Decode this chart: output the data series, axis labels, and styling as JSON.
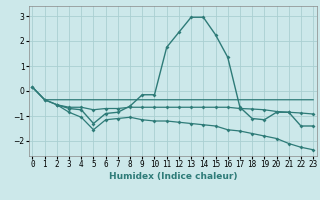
{
  "xlabel": "Humidex (Indice chaleur)",
  "bg_color": "#cce8ea",
  "line_color": "#2e7b78",
  "grid_color": "#aacfd2",
  "x_ticks": [
    0,
    1,
    2,
    3,
    4,
    5,
    6,
    7,
    8,
    9,
    10,
    11,
    12,
    13,
    14,
    15,
    16,
    17,
    18,
    19,
    20,
    21,
    22,
    23
  ],
  "ylim": [
    -2.6,
    3.4
  ],
  "xlim": [
    -0.3,
    23.3
  ],
  "series_main": {
    "x": [
      0,
      1,
      2,
      3,
      4,
      5,
      6,
      7,
      8,
      9,
      10,
      11,
      12,
      13,
      14,
      15,
      16,
      17,
      18,
      19,
      20,
      21,
      22,
      23
    ],
    "y": [
      0.15,
      -0.35,
      -0.55,
      -0.7,
      -0.75,
      -1.3,
      -0.9,
      -0.85,
      -0.6,
      -0.15,
      -0.15,
      1.75,
      2.35,
      2.95,
      2.95,
      2.25,
      1.35,
      -0.65,
      -1.1,
      -1.15,
      -0.85,
      -0.85,
      -1.4,
      -1.4
    ]
  },
  "series_flat": {
    "x": [
      0,
      1,
      2,
      3,
      4,
      5,
      6,
      7,
      8,
      9,
      10,
      11,
      12,
      13,
      14,
      15,
      16,
      17,
      18,
      19,
      20,
      21,
      22,
      23
    ],
    "y": [
      0.15,
      -0.35,
      -0.35,
      -0.35,
      -0.35,
      -0.35,
      -0.35,
      -0.35,
      -0.35,
      -0.35,
      -0.35,
      -0.35,
      -0.35,
      -0.35,
      -0.35,
      -0.35,
      -0.35,
      -0.35,
      -0.35,
      -0.35,
      -0.35,
      -0.35,
      -0.35,
      -0.35
    ]
  },
  "series_mid": {
    "x": [
      2,
      3,
      4,
      5,
      6,
      7,
      8,
      9,
      10,
      11,
      12,
      13,
      14,
      15,
      16,
      17,
      18,
      19,
      20,
      21,
      22,
      23
    ],
    "y": [
      -0.55,
      -0.65,
      -0.65,
      -0.75,
      -0.7,
      -0.7,
      -0.65,
      -0.65,
      -0.65,
      -0.65,
      -0.65,
      -0.65,
      -0.65,
      -0.65,
      -0.65,
      -0.7,
      -0.72,
      -0.75,
      -0.82,
      -0.85,
      -0.88,
      -0.92
    ]
  },
  "series_low": {
    "x": [
      0,
      1,
      2,
      3,
      4,
      5,
      6,
      7,
      8,
      9,
      10,
      11,
      12,
      13,
      14,
      15,
      16,
      17,
      18,
      19,
      20,
      21,
      22,
      23
    ],
    "y": [
      0.15,
      -0.35,
      -0.55,
      -0.85,
      -1.05,
      -1.55,
      -1.15,
      -1.1,
      -1.05,
      -1.15,
      -1.2,
      -1.2,
      -1.25,
      -1.3,
      -1.35,
      -1.4,
      -1.55,
      -1.6,
      -1.7,
      -1.8,
      -1.9,
      -2.1,
      -2.25,
      -2.35
    ]
  }
}
